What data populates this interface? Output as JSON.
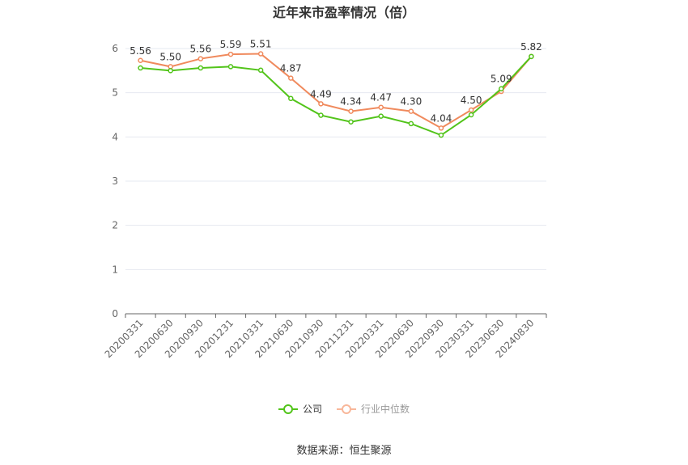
{
  "chart_data": {
    "type": "line",
    "title": "近年来市盈率情况（倍）",
    "categories": [
      "20200331",
      "20200630",
      "20200930",
      "20201231",
      "20210331",
      "20210630",
      "20210930",
      "20211231",
      "20220331",
      "20220630",
      "20220930",
      "20230331",
      "20230630",
      "20240830"
    ],
    "series": [
      {
        "name": "公司",
        "color": "#52c41a",
        "values": [
          5.56,
          5.5,
          5.56,
          5.59,
          5.51,
          4.87,
          4.49,
          4.34,
          4.47,
          4.3,
          4.04,
          4.5,
          5.09,
          5.82
        ],
        "show_labels": true
      },
      {
        "name": "行业中位数",
        "color": "#f08a5d",
        "values": [
          5.73,
          5.59,
          5.77,
          5.87,
          5.88,
          5.33,
          4.75,
          4.58,
          4.67,
          4.58,
          4.2,
          4.61,
          5.03,
          5.82
        ],
        "show_labels": false
      }
    ],
    "ylim": [
      0,
      6
    ],
    "yticks": [
      0,
      1,
      2,
      3,
      4,
      5,
      6
    ],
    "grid": true,
    "legend_position": "bottom"
  },
  "source_text": "数据来源：恒生聚源"
}
